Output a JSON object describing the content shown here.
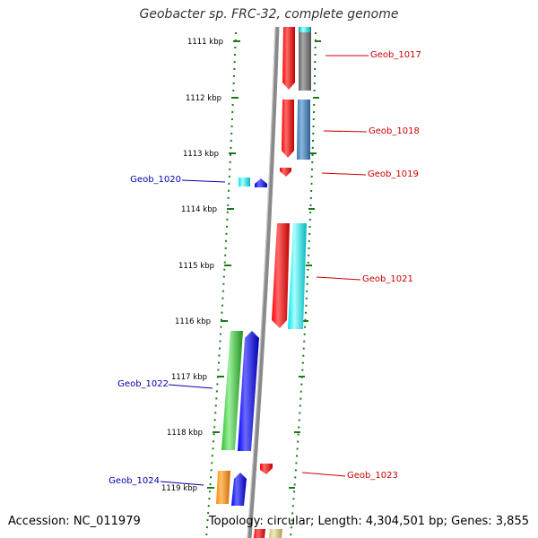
{
  "title": "Geobacter sp. FRC-32, complete genome",
  "footer": {
    "accession": "Accession: NC_011979",
    "summary": "Topology: circular; Length: 4,304,501 bp; Genes: 3,855"
  },
  "ticks": [
    "1111 kbp",
    "1112 kbp",
    "1113 kbp",
    "1114 kbp",
    "1115 kbp",
    "1116 kbp",
    "1117 kbp",
    "1118 kbp",
    "1119 kbp"
  ],
  "genes": [
    {
      "label": "Geob_1017",
      "color": "#cc0000"
    },
    {
      "label": "Geob_1018",
      "color": "#cc0000"
    },
    {
      "label": "Geob_1019",
      "color": "#cc0000"
    },
    {
      "label": "Geob_1020",
      "color": "#0000aa"
    },
    {
      "label": "Geob_1021",
      "color": "#cc0000"
    },
    {
      "label": "Geob_1022",
      "color": "#0000aa"
    },
    {
      "label": "Geob_1023",
      "color": "#cc0000"
    },
    {
      "label": "Geob_1024",
      "color": "#0000aa"
    }
  ],
  "colors": {
    "backbone": "#8a8a8a",
    "ticks": "#1a7a1a",
    "red": "#ff0000",
    "cyan": "#00e5ee",
    "gray": "#777777",
    "steelblue": "#4682b4",
    "blue": "#0000ff",
    "green": "#33cc33",
    "orange": "#ff8c00",
    "khaki": "#d8d08a"
  }
}
